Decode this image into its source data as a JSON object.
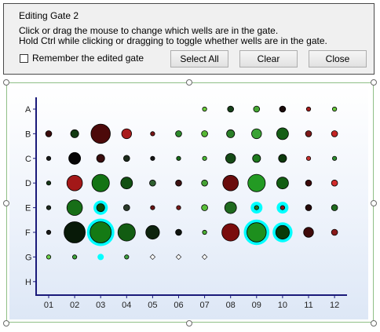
{
  "dialog": {
    "title": "Editing Gate 2",
    "instruction_1": "Click or drag the mouse to change which wells are in the gate.",
    "instruction_2": "Hold Ctrl while clicking or dragging to toggle whether wells are in the gate.",
    "remember_label": "Remember the edited gate",
    "remember_checked": false,
    "buttons": {
      "select_all": "Select All",
      "clear": "Clear",
      "close": "Close"
    }
  },
  "plate": {
    "rows": [
      "A",
      "B",
      "C",
      "D",
      "E",
      "F",
      "G",
      "H"
    ],
    "columns": [
      "01",
      "02",
      "03",
      "04",
      "05",
      "06",
      "07",
      "08",
      "09",
      "10",
      "11",
      "12"
    ],
    "colors": {
      "selected_ring": "#00ffff",
      "white_well": "#ffffff",
      "green_light": "#66cc33",
      "green_dark": "#0d4d0d",
      "red_dark": "#5a0000",
      "red": "#b81f1f"
    },
    "wells": [
      {
        "row": "A",
        "col": "07",
        "size": 1,
        "color": "#6ccf3d",
        "selected": false
      },
      {
        "row": "A",
        "col": "08",
        "size": 2,
        "color": "#17401a",
        "selected": false
      },
      {
        "row": "A",
        "col": "09",
        "size": 2,
        "color": "#46a734",
        "selected": false
      },
      {
        "row": "A",
        "col": "10",
        "size": 2,
        "color": "#1a0b0b",
        "selected": false
      },
      {
        "row": "A",
        "col": "11",
        "size": 1,
        "color": "#a61d1d",
        "selected": false
      },
      {
        "row": "A",
        "col": "12",
        "size": 1,
        "color": "#67c83c",
        "selected": false
      },
      {
        "row": "B",
        "col": "01",
        "size": 2,
        "color": "#3a0c0c",
        "selected": false
      },
      {
        "row": "B",
        "col": "02",
        "size": 3,
        "color": "#123a12",
        "selected": false
      },
      {
        "row": "B",
        "col": "03",
        "size": 9,
        "color": "#4c0a0a",
        "selected": false
      },
      {
        "row": "B",
        "col": "04",
        "size": 4,
        "color": "#a81c1c",
        "selected": false
      },
      {
        "row": "B",
        "col": "05",
        "size": 1,
        "color": "#7a1616",
        "selected": false
      },
      {
        "row": "B",
        "col": "06",
        "size": 2,
        "color": "#2e8a2c",
        "selected": false
      },
      {
        "row": "B",
        "col": "07",
        "size": 2,
        "color": "#56b734",
        "selected": false
      },
      {
        "row": "B",
        "col": "08",
        "size": 3,
        "color": "#2b7f29",
        "selected": false
      },
      {
        "row": "B",
        "col": "09",
        "size": 4,
        "color": "#3aa234",
        "selected": false
      },
      {
        "row": "B",
        "col": "10",
        "size": 5,
        "color": "#155e16",
        "selected": false
      },
      {
        "row": "B",
        "col": "11",
        "size": 2,
        "color": "#7d1a1a",
        "selected": false
      },
      {
        "row": "B",
        "col": "12",
        "size": 2,
        "color": "#c42424",
        "selected": false
      },
      {
        "row": "C",
        "col": "01",
        "size": 1,
        "color": "#1a1a1a",
        "selected": false
      },
      {
        "row": "C",
        "col": "02",
        "size": 5,
        "color": "#050505",
        "selected": false
      },
      {
        "row": "C",
        "col": "03",
        "size": 3,
        "color": "#3a0e0e",
        "selected": false
      },
      {
        "row": "C",
        "col": "04",
        "size": 2,
        "color": "#1c2c1c",
        "selected": false
      },
      {
        "row": "C",
        "col": "05",
        "size": 1,
        "color": "#161616",
        "selected": false
      },
      {
        "row": "C",
        "col": "06",
        "size": 1,
        "color": "#1a6b1a",
        "selected": false
      },
      {
        "row": "C",
        "col": "07",
        "size": 1,
        "color": "#4cba36",
        "selected": false
      },
      {
        "row": "C",
        "col": "08",
        "size": 4,
        "color": "#154a16",
        "selected": false
      },
      {
        "row": "C",
        "col": "09",
        "size": 3,
        "color": "#1e7a1e",
        "selected": false
      },
      {
        "row": "C",
        "col": "10",
        "size": 3,
        "color": "#0d3a0d",
        "selected": false
      },
      {
        "row": "C",
        "col": "11",
        "size": 1,
        "color": "#c73030",
        "selected": false
      },
      {
        "row": "C",
        "col": "12",
        "size": 1,
        "color": "#2f8c2f",
        "selected": false
      },
      {
        "row": "D",
        "col": "01",
        "size": 1,
        "color": "#173a17",
        "selected": false
      },
      {
        "row": "D",
        "col": "02",
        "size": 7,
        "color": "#a31818",
        "selected": false
      },
      {
        "row": "D",
        "col": "03",
        "size": 8,
        "color": "#147414",
        "selected": false
      },
      {
        "row": "D",
        "col": "04",
        "size": 5,
        "color": "#124f12",
        "selected": false
      },
      {
        "row": "D",
        "col": "05",
        "size": 2,
        "color": "#2f5f2f",
        "selected": false
      },
      {
        "row": "D",
        "col": "06",
        "size": 2,
        "color": "#3e1212",
        "selected": false
      },
      {
        "row": "D",
        "col": "07",
        "size": 2,
        "color": "#45a234",
        "selected": false
      },
      {
        "row": "D",
        "col": "08",
        "size": 7,
        "color": "#6a0c0c",
        "selected": false
      },
      {
        "row": "D",
        "col": "09",
        "size": 8,
        "color": "#239a23",
        "selected": false
      },
      {
        "row": "D",
        "col": "10",
        "size": 5,
        "color": "#135e13",
        "selected": false
      },
      {
        "row": "D",
        "col": "11",
        "size": 2,
        "color": "#3d0a0a",
        "selected": false
      },
      {
        "row": "D",
        "col": "12",
        "size": 2,
        "color": "#d22c2c",
        "selected": false
      },
      {
        "row": "E",
        "col": "01",
        "size": 1,
        "color": "#1e2a1e",
        "selected": false
      },
      {
        "row": "E",
        "col": "02",
        "size": 7,
        "color": "#176e17",
        "selected": false
      },
      {
        "row": "E",
        "col": "03",
        "size": 3,
        "color": "#0a4a0a",
        "selected": true
      },
      {
        "row": "E",
        "col": "04",
        "size": 2,
        "color": "#2a3b2a",
        "selected": false
      },
      {
        "row": "E",
        "col": "05",
        "size": 1,
        "color": "#6a1414",
        "selected": false
      },
      {
        "row": "E",
        "col": "06",
        "size": 1,
        "color": "#7a1a1a",
        "selected": false
      },
      {
        "row": "E",
        "col": "07",
        "size": 2,
        "color": "#59bf3a",
        "selected": false
      },
      {
        "row": "E",
        "col": "08",
        "size": 5,
        "color": "#1f6a1f",
        "selected": false
      },
      {
        "row": "E",
        "col": "09",
        "size": 1,
        "color": "#1f7a1f",
        "selected": true
      },
      {
        "row": "E",
        "col": "10",
        "size": 1,
        "color": "#8a1a1a",
        "selected": true
      },
      {
        "row": "E",
        "col": "11",
        "size": 2,
        "color": "#270a0a",
        "selected": false
      },
      {
        "row": "E",
        "col": "12",
        "size": 2,
        "color": "#1f6a1f",
        "selected": false
      },
      {
        "row": "F",
        "col": "01",
        "size": 1,
        "color": "#1a1a1a",
        "selected": false
      },
      {
        "row": "F",
        "col": "02",
        "size": 10,
        "color": "#081a08",
        "selected": false
      },
      {
        "row": "F",
        "col": "03",
        "size": 10,
        "color": "#147a14",
        "selected": true
      },
      {
        "row": "F",
        "col": "04",
        "size": 8,
        "color": "#125c12",
        "selected": false
      },
      {
        "row": "F",
        "col": "05",
        "size": 6,
        "color": "#0e230e",
        "selected": false
      },
      {
        "row": "F",
        "col": "06",
        "size": 2,
        "color": "#0f140f",
        "selected": false
      },
      {
        "row": "F",
        "col": "07",
        "size": 1,
        "color": "#4cb034",
        "selected": false
      },
      {
        "row": "F",
        "col": "08",
        "size": 8,
        "color": "#7a0c0c",
        "selected": false
      },
      {
        "row": "F",
        "col": "09",
        "size": 9,
        "color": "#1d8f1d",
        "selected": true
      },
      {
        "row": "F",
        "col": "10",
        "size": 6,
        "color": "#083a08",
        "selected": true
      },
      {
        "row": "F",
        "col": "11",
        "size": 4,
        "color": "#3f0a0a",
        "selected": false
      },
      {
        "row": "F",
        "col": "12",
        "size": 2,
        "color": "#8a1a1a",
        "selected": false
      },
      {
        "row": "G",
        "col": "01",
        "size": 1,
        "color": "#6cd04a",
        "selected": false
      },
      {
        "row": "G",
        "col": "02",
        "size": 1,
        "color": "#3da23a",
        "selected": false
      },
      {
        "row": "G",
        "col": "03",
        "size": 1,
        "color": "#00ffff",
        "selected": false
      },
      {
        "row": "G",
        "col": "04",
        "size": 1,
        "color": "#3fa03f",
        "selected": false
      },
      {
        "row": "G",
        "col": "05",
        "size": 1,
        "color": "#ffffff",
        "selected": false
      },
      {
        "row": "G",
        "col": "06",
        "size": 1,
        "color": "#ffffff",
        "selected": false
      },
      {
        "row": "G",
        "col": "07",
        "size": 1,
        "color": "#ffffff",
        "selected": false
      }
    ]
  }
}
